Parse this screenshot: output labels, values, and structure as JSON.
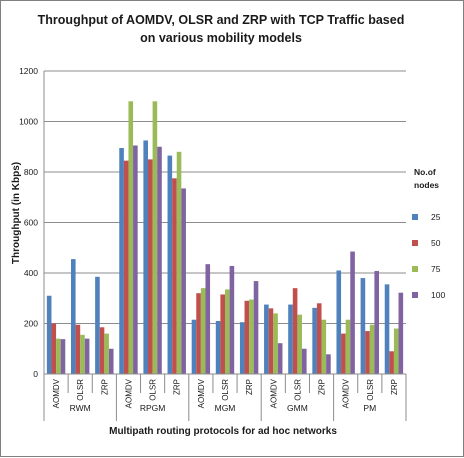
{
  "chart_data": {
    "type": "bar",
    "title_lines": [
      "Throughput of AOMDV, OLSR and ZRP with TCP Traffic  based",
      "on various mobility models"
    ],
    "ylabel": "Throughput (in Kbps)",
    "xlabel": "Multipath routing protocols for ad hoc networks",
    "ylim": [
      0,
      1200
    ],
    "yticks": [
      "0",
      "200",
      "400",
      "600",
      "800",
      "1000",
      "1200"
    ],
    "ytick_values": [
      0,
      200,
      400,
      600,
      800,
      1000,
      1200
    ],
    "grid": true,
    "groups": [
      "RWM",
      "RPGM",
      "MGM",
      "GMM",
      "PM"
    ],
    "protocols": [
      "AOMDV",
      "OLSR",
      "ZRP"
    ],
    "categories": [
      "AOMDV",
      "OLSR",
      "ZRP",
      "AOMDV",
      "OLSR",
      "ZRP",
      "AOMDV",
      "OLSR",
      "ZRP",
      "AOMDV",
      "OLSR",
      "ZRP",
      "AOMDV",
      "OLSR",
      "ZRP"
    ],
    "legend": {
      "title_lines": [
        "No.of",
        "nodes"
      ],
      "placement": "right"
    },
    "series": [
      {
        "name": "25",
        "color": "#4f81bd",
        "values": [
          310,
          455,
          385,
          895,
          925,
          865,
          215,
          210,
          205,
          275,
          275,
          262,
          410,
          380,
          355
        ]
      },
      {
        "name": "50",
        "color": "#c0504d",
        "values": [
          200,
          195,
          185,
          845,
          850,
          775,
          320,
          315,
          290,
          260,
          340,
          280,
          160,
          170,
          90
        ]
      },
      {
        "name": "75",
        "color": "#9bbb59",
        "values": [
          140,
          155,
          160,
          1080,
          1080,
          880,
          340,
          335,
          295,
          240,
          235,
          215,
          215,
          195,
          180
        ]
      },
      {
        "name": "100",
        "color": "#8064a2",
        "values": [
          138,
          140,
          100,
          905,
          900,
          735,
          435,
          428,
          368,
          122,
          100,
          78,
          485,
          408,
          322
        ]
      }
    ]
  }
}
